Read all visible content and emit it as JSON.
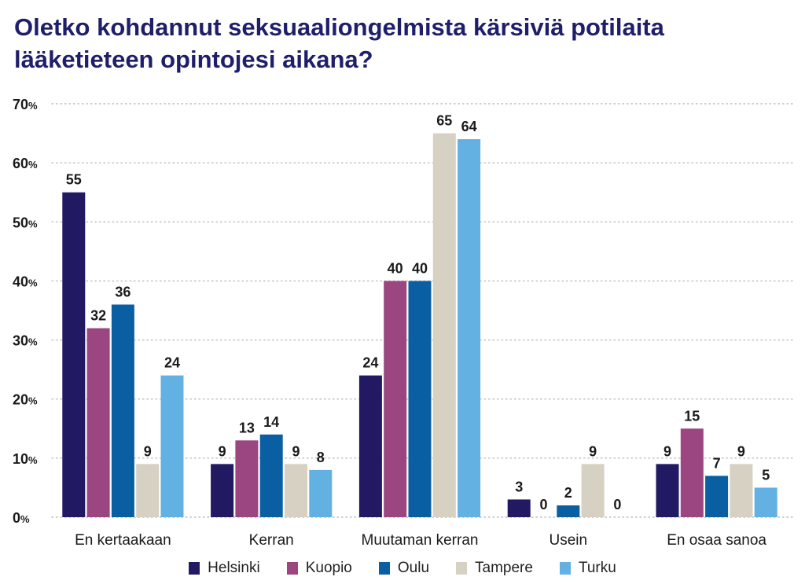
{
  "chart_data": {
    "type": "bar",
    "title": "Oletko kohdannut seksuaaliongelmista kärsiviä potilaita lääketieteen opintojesi aikana?",
    "categories": [
      "En kertaakaan",
      "Kerran",
      "Muutaman kerran",
      "Usein",
      "En osaa sanoa"
    ],
    "series": [
      {
        "name": "Helsinki",
        "color": "#211a63",
        "values": [
          55,
          9,
          24,
          3,
          9
        ]
      },
      {
        "name": "Kuopio",
        "color": "#9b4680",
        "values": [
          32,
          13,
          40,
          0,
          15
        ]
      },
      {
        "name": "Oulu",
        "color": "#0a5fa2",
        "values": [
          36,
          14,
          40,
          2,
          7
        ]
      },
      {
        "name": "Tampere",
        "color": "#d6d1c2",
        "values": [
          9,
          9,
          65,
          9,
          9
        ]
      },
      {
        "name": "Turku",
        "color": "#63b1e3",
        "values": [
          24,
          8,
          64,
          0,
          5
        ]
      }
    ],
    "ylim": [
      0,
      70
    ],
    "yticks": [
      0,
      10,
      20,
      30,
      40,
      50,
      60,
      70
    ],
    "ytick_unit": "%",
    "grid": true,
    "legend": "bottom-center"
  }
}
